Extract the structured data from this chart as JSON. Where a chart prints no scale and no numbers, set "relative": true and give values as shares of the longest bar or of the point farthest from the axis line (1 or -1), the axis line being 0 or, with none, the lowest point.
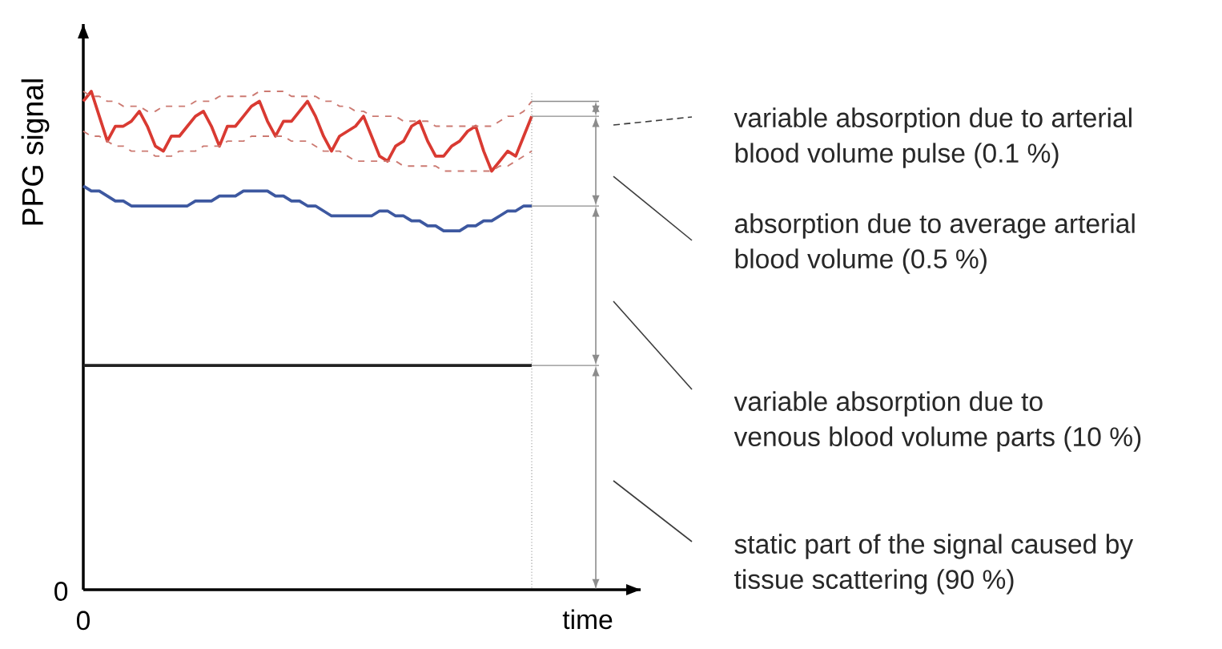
{
  "chart_data": {
    "type": "line",
    "relative": true,
    "ylabel": "PPG signal",
    "xlabel": "time",
    "categories": [
      null,
      null,
      null,
      null,
      null,
      null,
      null,
      null,
      null,
      null,
      null,
      null,
      null,
      null,
      null,
      null,
      null,
      null,
      null,
      null,
      null,
      null,
      null,
      null,
      null,
      null,
      null,
      null,
      null,
      null,
      null,
      null,
      null,
      null,
      null,
      null,
      null,
      null,
      null,
      null,
      null,
      null,
      null,
      null,
      null,
      null,
      null,
      null,
      null,
      null,
      null,
      null,
      null,
      null,
      null,
      null,
      null
    ],
    "series": [
      {
        "color": "#d93a32",
        "line_style": "solid",
        "values": [
          0.98,
          1.0,
          0.95,
          0.9,
          0.93,
          0.93,
          0.94,
          0.96,
          0.93,
          0.89,
          0.88,
          0.91,
          0.91,
          0.93,
          0.95,
          0.96,
          0.93,
          0.89,
          0.93,
          0.93,
          0.95,
          0.97,
          0.98,
          0.94,
          0.91,
          0.94,
          0.94,
          0.96,
          0.98,
          0.95,
          0.91,
          0.88,
          0.91,
          0.92,
          0.93,
          0.95,
          0.91,
          0.87,
          0.86,
          0.89,
          0.9,
          0.93,
          0.94,
          0.9,
          0.87,
          0.87,
          0.89,
          0.9,
          0.92,
          0.93,
          0.88,
          0.84,
          0.86,
          0.88,
          0.87,
          0.91,
          0.95
        ]
      },
      {
        "color": "#cc7a72",
        "line_style": "dashed",
        "values": [
          1.0,
          0.99,
          0.99,
          0.98,
          0.98,
          0.97,
          0.97,
          0.97,
          0.96,
          0.96,
          0.97,
          0.97,
          0.97,
          0.97,
          0.98,
          0.98,
          0.98,
          0.99,
          0.99,
          0.99,
          0.99,
          0.99,
          1.0,
          1.0,
          1.0,
          1.0,
          0.99,
          0.99,
          0.99,
          0.99,
          0.98,
          0.98,
          0.97,
          0.97,
          0.96,
          0.96,
          0.95,
          0.95,
          0.95,
          0.95,
          0.94,
          0.94,
          0.94,
          0.94,
          0.93,
          0.93,
          0.93,
          0.93,
          0.93,
          0.93,
          0.93,
          0.93,
          0.94,
          0.95,
          0.95,
          0.96,
          0.98
        ]
      },
      {
        "color": "#cc7a72",
        "line_style": "dashed",
        "values": [
          0.92,
          0.91,
          0.91,
          0.9,
          0.89,
          0.89,
          0.88,
          0.88,
          0.88,
          0.87,
          0.87,
          0.87,
          0.88,
          0.88,
          0.88,
          0.89,
          0.89,
          0.89,
          0.9,
          0.9,
          0.9,
          0.91,
          0.91,
          0.91,
          0.91,
          0.91,
          0.9,
          0.9,
          0.9,
          0.89,
          0.88,
          0.88,
          0.88,
          0.87,
          0.86,
          0.86,
          0.86,
          0.86,
          0.86,
          0.86,
          0.85,
          0.85,
          0.85,
          0.85,
          0.85,
          0.84,
          0.84,
          0.84,
          0.84,
          0.84,
          0.84,
          0.84,
          0.85,
          0.85,
          0.86,
          0.87,
          0.88
        ]
      },
      {
        "color": "#3d58a0",
        "line_style": "solid",
        "values": [
          0.81,
          0.8,
          0.8,
          0.79,
          0.78,
          0.78,
          0.77,
          0.77,
          0.77,
          0.77,
          0.77,
          0.77,
          0.77,
          0.77,
          0.78,
          0.78,
          0.78,
          0.79,
          0.79,
          0.79,
          0.8,
          0.8,
          0.8,
          0.8,
          0.79,
          0.79,
          0.78,
          0.78,
          0.77,
          0.77,
          0.76,
          0.75,
          0.75,
          0.75,
          0.75,
          0.75,
          0.75,
          0.76,
          0.76,
          0.75,
          0.75,
          0.74,
          0.74,
          0.73,
          0.73,
          0.72,
          0.72,
          0.72,
          0.73,
          0.73,
          0.74,
          0.74,
          0.75,
          0.76,
          0.76,
          0.77,
          0.77
        ]
      },
      {
        "color": "#222222",
        "line_style": "solid",
        "values": [
          0.45,
          0.45,
          0.45,
          0.45,
          0.45,
          0.45,
          0.45,
          0.45,
          0.45,
          0.45,
          0.45,
          0.45,
          0.45,
          0.45,
          0.45,
          0.45,
          0.45,
          0.45,
          0.45,
          0.45,
          0.45,
          0.45,
          0.45,
          0.45,
          0.45,
          0.45,
          0.45,
          0.45,
          0.45,
          0.45,
          0.45,
          0.45,
          0.45,
          0.45,
          0.45,
          0.45,
          0.45,
          0.45,
          0.45,
          0.45,
          0.45,
          0.45,
          0.45,
          0.45,
          0.45,
          0.45,
          0.45,
          0.45,
          0.45,
          0.45,
          0.45,
          0.45,
          0.45,
          0.45,
          0.45,
          0.45,
          0.45
        ]
      }
    ],
    "annotations": [
      "variable absorption due to arterial",
      "blood volume pulse (0.1 %)",
      "absorption due to average arterial",
      "blood volume (0.5 %)",
      "variable absorption due to",
      "venous blood volume parts (10 %)",
      "static part of the signal caused by",
      "tissue scattering (90 %)",
      "0",
      "0"
    ]
  }
}
